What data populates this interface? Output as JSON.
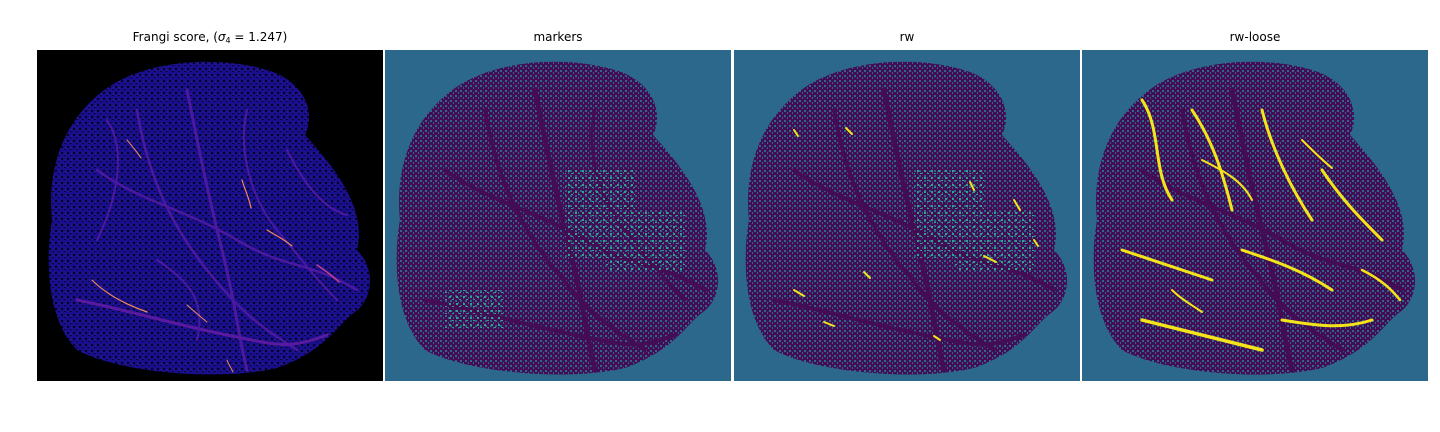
{
  "figure": {
    "panels": [
      {
        "id": "frangi",
        "title_prefix": "Frangi score, (",
        "sigma": "σ",
        "sub": "4",
        "title_suffix": " = 1.247)",
        "colormap": "magma"
      },
      {
        "id": "markers",
        "title": "markers",
        "colormap": "viridis"
      },
      {
        "id": "rw",
        "title": "rw",
        "colormap": "viridis"
      },
      {
        "id": "rw-loose",
        "title": "rw-loose",
        "colormap": "viridis"
      }
    ]
  },
  "colors": {
    "frangi_background": "#000000",
    "frangi_tissue": "#1a0f8a",
    "frangi_vessel": "#5a1aa0",
    "frangi_hot": "#f08a5a",
    "seg_background": "#2c678c",
    "seg_tissue": "#440c54",
    "seg_teal": "#2fa388",
    "seg_yellow": "#f4e51a"
  }
}
